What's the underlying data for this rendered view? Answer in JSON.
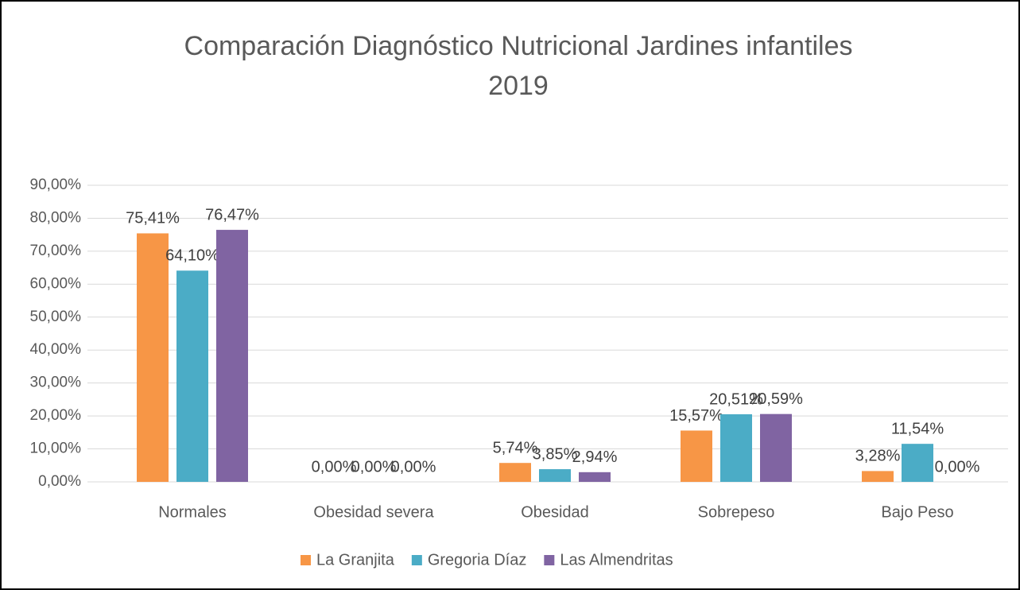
{
  "chart_data": {
    "type": "bar",
    "title": [
      "Comparación Diagnóstico Nutricional Jardines  infantiles",
      "2019"
    ],
    "categories": [
      "Normales",
      "Obesidad severa",
      "Obesidad",
      "Sobrepeso",
      "Bajo Peso"
    ],
    "series": [
      {
        "name": "La Granjita",
        "color": "#f79646",
        "values": [
          75.41,
          0,
          5.74,
          15.57,
          3.28
        ],
        "value_labels": [
          "75,41%",
          "0,00%",
          "5,74%",
          "15,57%",
          "3,28%"
        ]
      },
      {
        "name": "Gregoria Díaz",
        "color": "#4bacc6",
        "values": [
          64.1,
          0,
          3.85,
          20.51,
          11.54
        ],
        "value_labels": [
          "64,10%",
          "0,00%",
          "3,85%",
          "20,51%",
          "11,54%"
        ]
      },
      {
        "name": "Las Almendritas",
        "color": "#8064a2",
        "values": [
          76.47,
          0,
          2.94,
          20.59,
          0
        ],
        "value_labels": [
          "76,47%",
          "0,00%",
          "2,94%",
          "20,59%",
          "0,00%"
        ]
      }
    ],
    "ylim": [
      0,
      90
    ],
    "yticks": [
      {
        "value": 0,
        "label": "0,00%"
      },
      {
        "value": 10,
        "label": "10,00%"
      },
      {
        "value": 20,
        "label": "20,00%"
      },
      {
        "value": 30,
        "label": "30,00%"
      },
      {
        "value": 40,
        "label": "40,00%"
      },
      {
        "value": 50,
        "label": "50,00%"
      },
      {
        "value": 60,
        "label": "60,00%"
      },
      {
        "value": 70,
        "label": "70,00%"
      },
      {
        "value": 80,
        "label": "80,00%"
      },
      {
        "value": 90,
        "label": "90,00%"
      }
    ],
    "grid": true,
    "legend": "bottom"
  }
}
